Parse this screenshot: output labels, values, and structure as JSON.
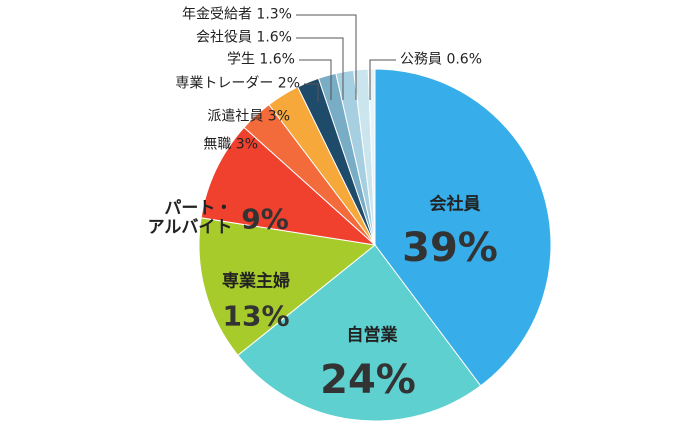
{
  "chart_data": {
    "type": "pie",
    "categories": [
      "会社員",
      "自営業",
      "専業主婦",
      "パート・\nアルバイト",
      "無職",
      "派遣社員",
      "専業トレーダー",
      "学生",
      "会社役員",
      "年金受給者",
      "公務員"
    ],
    "values": [
      39,
      24,
      13,
      9,
      3,
      3,
      2,
      1.6,
      1.6,
      1.3,
      0.6
    ],
    "value_labels": [
      "39%",
      "24%",
      "13%",
      "9%",
      "3%",
      "3%",
      "2%",
      "1.6%",
      "1.6%",
      "1.3%",
      "0.6%"
    ],
    "colors": [
      "#37aee9",
      "#5ed0cf",
      "#a7cb2b",
      "#f0412f",
      "#f36b3b",
      "#f7a83b",
      "#1f4b6b",
      "#78adc5",
      "#a6cfe1",
      "#cbe5ef",
      "#e6f3f8"
    ]
  }
}
